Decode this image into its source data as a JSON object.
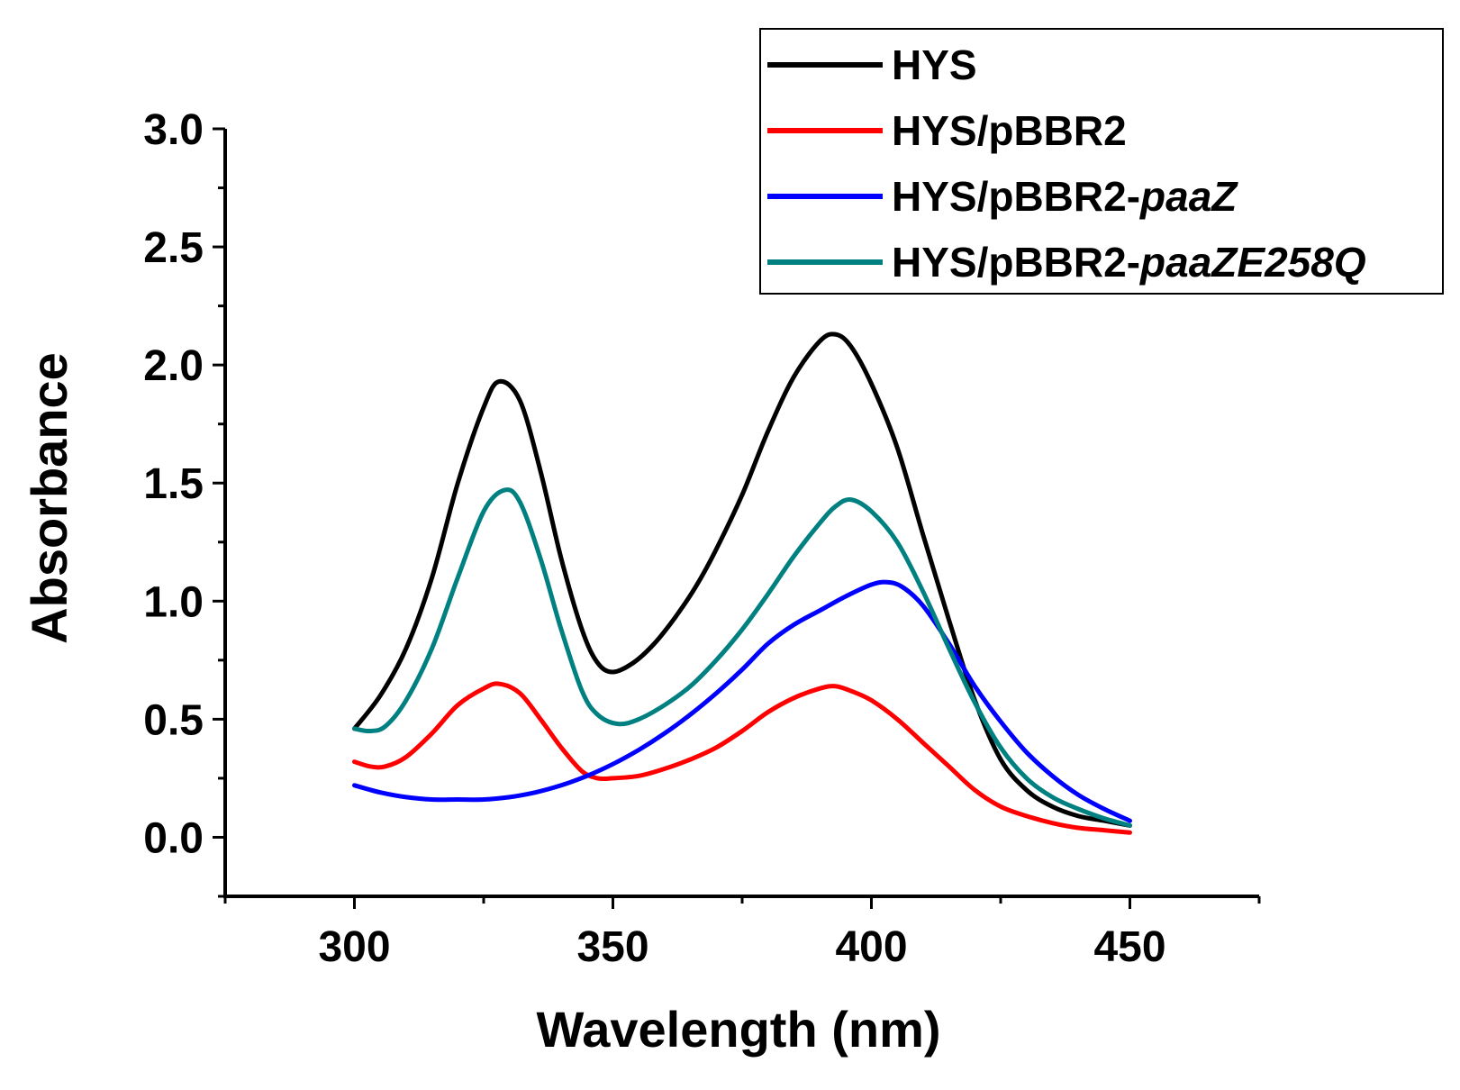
{
  "chart_data": {
    "type": "line",
    "title": "",
    "xlabel": "Wavelength (nm)",
    "ylabel": "Absorbance",
    "xlim": [
      275,
      475
    ],
    "ylim": [
      -0.25,
      3.0
    ],
    "x_ticks": [
      "300",
      "350",
      "400",
      "450"
    ],
    "y_ticks": [
      "0.0",
      "0.5",
      "1.0",
      "1.5",
      "2.0",
      "2.5",
      "3.0"
    ],
    "grid": false,
    "legend_position": "top-right",
    "series": [
      {
        "name": "HYS",
        "name_plain": "HYS",
        "name_italic": "",
        "color": "#000000",
        "points": [
          [
            300,
            0.46
          ],
          [
            305,
            0.6
          ],
          [
            310,
            0.8
          ],
          [
            315,
            1.1
          ],
          [
            320,
            1.5
          ],
          [
            325,
            1.82
          ],
          [
            328,
            1.93
          ],
          [
            332,
            1.85
          ],
          [
            336,
            1.55
          ],
          [
            340,
            1.18
          ],
          [
            344,
            0.88
          ],
          [
            347,
            0.74
          ],
          [
            350,
            0.7
          ],
          [
            354,
            0.74
          ],
          [
            358,
            0.82
          ],
          [
            362,
            0.93
          ],
          [
            366,
            1.06
          ],
          [
            370,
            1.22
          ],
          [
            375,
            1.45
          ],
          [
            380,
            1.72
          ],
          [
            385,
            1.95
          ],
          [
            390,
            2.1
          ],
          [
            393,
            2.13
          ],
          [
            396,
            2.08
          ],
          [
            400,
            1.92
          ],
          [
            405,
            1.65
          ],
          [
            410,
            1.28
          ],
          [
            415,
            0.92
          ],
          [
            420,
            0.58
          ],
          [
            425,
            0.33
          ],
          [
            430,
            0.2
          ],
          [
            435,
            0.13
          ],
          [
            440,
            0.09
          ],
          [
            445,
            0.07
          ],
          [
            450,
            0.05
          ]
        ]
      },
      {
        "name": "HYS/pBBR2",
        "name_plain": "HYS/pBBR2",
        "name_italic": "",
        "color": "#ff0000",
        "points": [
          [
            300,
            0.32
          ],
          [
            303,
            0.3
          ],
          [
            306,
            0.3
          ],
          [
            310,
            0.34
          ],
          [
            315,
            0.44
          ],
          [
            320,
            0.56
          ],
          [
            325,
            0.63
          ],
          [
            328,
            0.65
          ],
          [
            332,
            0.61
          ],
          [
            336,
            0.5
          ],
          [
            340,
            0.38
          ],
          [
            344,
            0.28
          ],
          [
            347,
            0.25
          ],
          [
            350,
            0.25
          ],
          [
            355,
            0.26
          ],
          [
            360,
            0.29
          ],
          [
            365,
            0.33
          ],
          [
            370,
            0.38
          ],
          [
            375,
            0.45
          ],
          [
            380,
            0.53
          ],
          [
            385,
            0.59
          ],
          [
            390,
            0.63
          ],
          [
            393,
            0.64
          ],
          [
            396,
            0.62
          ],
          [
            400,
            0.58
          ],
          [
            405,
            0.5
          ],
          [
            410,
            0.4
          ],
          [
            415,
            0.3
          ],
          [
            420,
            0.2
          ],
          [
            425,
            0.13
          ],
          [
            430,
            0.09
          ],
          [
            435,
            0.06
          ],
          [
            440,
            0.04
          ],
          [
            445,
            0.03
          ],
          [
            450,
            0.02
          ]
        ]
      },
      {
        "name": "HYS/pBBR2-paaZ",
        "name_plain": "HYS/pBBR2-",
        "name_italic": "paaZ",
        "color": "#0000ff",
        "points": [
          [
            300,
            0.22
          ],
          [
            305,
            0.19
          ],
          [
            310,
            0.17
          ],
          [
            315,
            0.16
          ],
          [
            320,
            0.16
          ],
          [
            325,
            0.16
          ],
          [
            330,
            0.17
          ],
          [
            335,
            0.19
          ],
          [
            340,
            0.22
          ],
          [
            345,
            0.26
          ],
          [
            350,
            0.31
          ],
          [
            355,
            0.37
          ],
          [
            360,
            0.44
          ],
          [
            365,
            0.52
          ],
          [
            370,
            0.61
          ],
          [
            375,
            0.71
          ],
          [
            380,
            0.82
          ],
          [
            385,
            0.9
          ],
          [
            390,
            0.96
          ],
          [
            395,
            1.02
          ],
          [
            400,
            1.07
          ],
          [
            403,
            1.08
          ],
          [
            406,
            1.06
          ],
          [
            410,
            0.98
          ],
          [
            415,
            0.82
          ],
          [
            420,
            0.64
          ],
          [
            425,
            0.49
          ],
          [
            430,
            0.36
          ],
          [
            435,
            0.26
          ],
          [
            440,
            0.18
          ],
          [
            445,
            0.12
          ],
          [
            450,
            0.07
          ]
        ]
      },
      {
        "name": "HYS/pBBR2-paaZE258Q",
        "name_plain": "HYS/pBBR2-",
        "name_italic": "paaZE258Q",
        "color": "#008080",
        "points": [
          [
            300,
            0.46
          ],
          [
            303,
            0.45
          ],
          [
            306,
            0.47
          ],
          [
            310,
            0.58
          ],
          [
            315,
            0.8
          ],
          [
            320,
            1.1
          ],
          [
            325,
            1.38
          ],
          [
            329,
            1.47
          ],
          [
            332,
            1.42
          ],
          [
            336,
            1.18
          ],
          [
            340,
            0.88
          ],
          [
            344,
            0.62
          ],
          [
            347,
            0.52
          ],
          [
            351,
            0.48
          ],
          [
            355,
            0.5
          ],
          [
            360,
            0.56
          ],
          [
            365,
            0.64
          ],
          [
            370,
            0.75
          ],
          [
            375,
            0.88
          ],
          [
            380,
            1.03
          ],
          [
            385,
            1.19
          ],
          [
            390,
            1.33
          ],
          [
            393,
            1.4
          ],
          [
            396,
            1.43
          ],
          [
            400,
            1.38
          ],
          [
            405,
            1.25
          ],
          [
            410,
            1.04
          ],
          [
            415,
            0.8
          ],
          [
            420,
            0.57
          ],
          [
            425,
            0.38
          ],
          [
            430,
            0.25
          ],
          [
            435,
            0.17
          ],
          [
            440,
            0.12
          ],
          [
            445,
            0.08
          ],
          [
            450,
            0.05
          ]
        ]
      }
    ]
  }
}
